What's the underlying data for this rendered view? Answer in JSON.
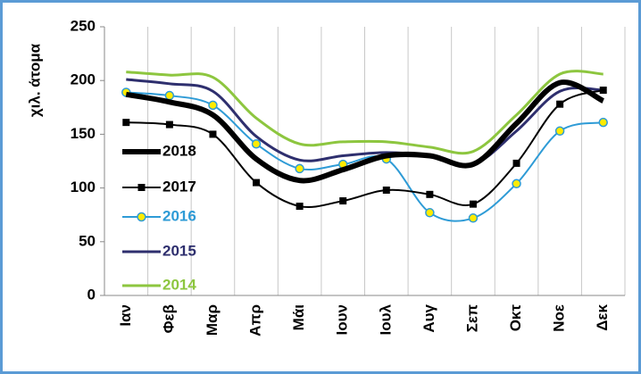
{
  "chart_data": {
    "type": "line",
    "y_label": "χιλ. άτομα",
    "categories": [
      "Ιαν",
      "Φεβ",
      "Μαρ",
      "Απρ",
      "Μάι",
      "Ιουν",
      "Ιουλ",
      "Αυγ",
      "Σεπ",
      "Οκτ",
      "Νοε",
      "Δεκ"
    ],
    "series": [
      {
        "name": "2018",
        "color": "#000000",
        "width": 6,
        "marker": "none",
        "values": [
          187,
          180,
          168,
          127,
          107,
          117,
          130,
          130,
          122,
          160,
          198,
          181
        ]
      },
      {
        "name": "2017",
        "color": "#000000",
        "width": 2,
        "marker": "square",
        "values": [
          161,
          159,
          150,
          105,
          83,
          88,
          98,
          94,
          85,
          123,
          178,
          191
        ]
      },
      {
        "name": "2016",
        "color": "#2e9bd6",
        "width": 2,
        "marker": "circle",
        "values": [
          189,
          186,
          177,
          141,
          118,
          122,
          127,
          77,
          72,
          104,
          153,
          161
        ]
      },
      {
        "name": "2015",
        "color": "#2e2f6e",
        "width": 3,
        "marker": "none",
        "values": [
          201,
          197,
          190,
          148,
          126,
          130,
          133,
          130,
          122,
          153,
          190,
          191
        ]
      },
      {
        "name": "2014",
        "color": "#8dc63f",
        "width": 3,
        "marker": "none",
        "values": [
          208,
          205,
          203,
          165,
          141,
          143,
          143,
          138,
          134,
          168,
          206,
          206
        ]
      }
    ],
    "ylim": [
      0,
      250
    ],
    "yticks": [
      0,
      50,
      100,
      150,
      200,
      250
    ],
    "grid": "x",
    "smooth": true,
    "legend": "left"
  }
}
